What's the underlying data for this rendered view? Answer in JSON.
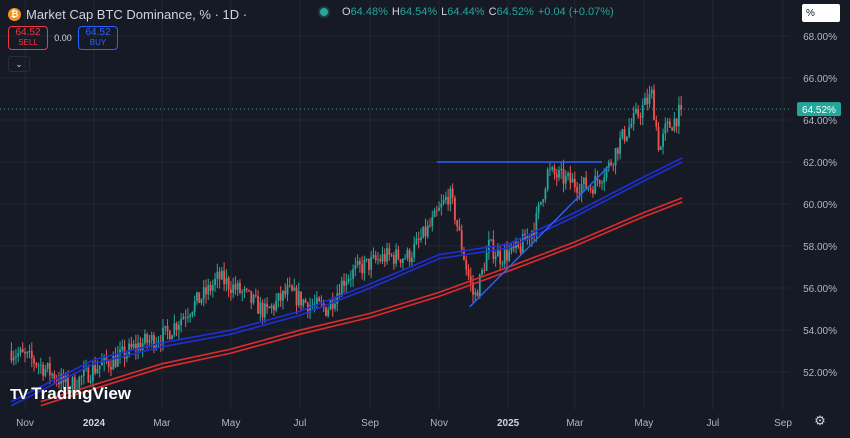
{
  "header": {
    "coin_glyph": "₿",
    "title": "Market Cap BTC Dominance, % · 1D ·",
    "ohlc": [
      {
        "k": "O",
        "v": "64.48%"
      },
      {
        "k": "H",
        "v": "64.54%"
      },
      {
        "k": "L",
        "v": "64.44%"
      },
      {
        "k": "C",
        "v": "64.52%"
      },
      {
        "k": "",
        "v": "+0.04 (+0.07%)"
      }
    ]
  },
  "trade": {
    "sell_price": "64.52",
    "sell_label": "SELL",
    "spread": "0.00",
    "buy_price": "64.52",
    "buy_label": "BUY"
  },
  "scale_button": "%",
  "logo_text": "TradingView",
  "colors": {
    "up": "#26a69a",
    "down": "#ef5350",
    "trend": "#2962ff",
    "ma_blue": "#1e2fd6",
    "ma_red": "#e02b2b",
    "price_tag": "#26a69a",
    "background": "#161a25"
  },
  "chart_data": {
    "type": "candlestick",
    "title": "Market Cap BTC Dominance, %",
    "interval": "1D",
    "yunit": "%",
    "ylim": [
      50.4,
      69.2
    ],
    "y_ticks": [
      "52.00%",
      "54.00%",
      "56.00%",
      "58.00%",
      "60.00%",
      "62.00%",
      "64.00%",
      "66.00%",
      "68.00%"
    ],
    "y_tick_values": [
      52,
      54,
      56,
      58,
      60,
      62,
      64,
      66,
      68
    ],
    "x_ticks": [
      "Nov",
      "2024",
      "Mar",
      "May",
      "Jul",
      "Sep",
      "Nov",
      "2025",
      "Mar",
      "May",
      "Jul",
      "Sep"
    ],
    "x_tick_dates": [
      "2023-11-01",
      "2024-01-01",
      "2024-03-01",
      "2024-05-01",
      "2024-07-01",
      "2024-09-01",
      "2024-11-01",
      "2025-01-01",
      "2025-03-01",
      "2025-05-01",
      "2025-07-01",
      "2025-09-01"
    ],
    "last_price": "64.52%",
    "last_value": 64.52,
    "price_anchors": [
      [
        "2023-10-20",
        53.0
      ],
      [
        "2023-11-10",
        52.5
      ],
      [
        "2023-12-10",
        51.3
      ],
      [
        "2024-01-05",
        52.3
      ],
      [
        "2024-01-20",
        52.6
      ],
      [
        "2024-02-10",
        53.3
      ],
      [
        "2024-03-05",
        53.8
      ],
      [
        "2024-03-25",
        55.0
      ],
      [
        "2024-04-10",
        55.8
      ],
      [
        "2024-04-20",
        56.5
      ],
      [
        "2024-05-10",
        55.8
      ],
      [
        "2024-06-01",
        54.8
      ],
      [
        "2024-06-20",
        55.8
      ],
      [
        "2024-07-10",
        55.2
      ],
      [
        "2024-07-25",
        55.0
      ],
      [
        "2024-08-10",
        56.5
      ],
      [
        "2024-08-25",
        57.0
      ],
      [
        "2024-09-15",
        57.5
      ],
      [
        "2024-10-05",
        57.5
      ],
      [
        "2024-10-25",
        59.0
      ],
      [
        "2024-11-10",
        60.5
      ],
      [
        "2024-11-15",
        59.5
      ],
      [
        "2024-11-25",
        57.0
      ],
      [
        "2024-12-02",
        55.5
      ],
      [
        "2024-12-08",
        56.5
      ],
      [
        "2024-12-15",
        58.0
      ],
      [
        "2024-12-25",
        57.5
      ],
      [
        "2025-01-10",
        57.8
      ],
      [
        "2025-01-25",
        59.0
      ],
      [
        "2025-02-05",
        61.5
      ],
      [
        "2025-02-15",
        61.3
      ],
      [
        "2025-02-28",
        61.0
      ],
      [
        "2025-03-15",
        60.8
      ],
      [
        "2025-03-31",
        61.8
      ],
      [
        "2025-04-10",
        63.0
      ],
      [
        "2025-04-25",
        64.2
      ],
      [
        "2025-05-08",
        65.2
      ],
      [
        "2025-05-15",
        62.5
      ],
      [
        "2025-05-20",
        63.5
      ],
      [
        "2025-05-28",
        64.0
      ],
      [
        "2025-06-04",
        64.52
      ]
    ],
    "moving_averages": [
      {
        "color": "#1e2fd6",
        "points": [
          [
            "2023-10-20",
            50.4
          ],
          [
            "2024-01-01",
            52.4
          ],
          [
            "2024-03-01",
            53.2
          ],
          [
            "2024-05-01",
            53.8
          ],
          [
            "2024-07-01",
            54.7
          ],
          [
            "2024-09-01",
            56.0
          ],
          [
            "2024-11-01",
            57.4
          ],
          [
            "2025-01-01",
            57.9
          ],
          [
            "2025-03-01",
            59.4
          ],
          [
            "2025-05-01",
            61.1
          ],
          [
            "2025-06-04",
            62.0
          ]
        ]
      },
      {
        "color": "#e02b2b",
        "points": [
          [
            "2023-11-15",
            50.4
          ],
          [
            "2024-01-01",
            51.2
          ],
          [
            "2024-03-01",
            52.2
          ],
          [
            "2024-05-01",
            52.9
          ],
          [
            "2024-07-01",
            53.8
          ],
          [
            "2024-09-01",
            54.6
          ],
          [
            "2024-11-01",
            55.6
          ],
          [
            "2025-01-01",
            56.8
          ],
          [
            "2025-03-01",
            58.0
          ],
          [
            "2025-05-01",
            59.4
          ],
          [
            "2025-06-04",
            60.1
          ]
        ]
      }
    ],
    "trendlines": [
      {
        "points": [
          [
            "2024-10-30",
            62.0
          ],
          [
            "2025-03-25",
            62.0
          ]
        ]
      },
      {
        "points": [
          [
            "2024-11-28",
            55.1
          ],
          [
            "2025-03-31",
            61.8
          ]
        ]
      }
    ]
  }
}
